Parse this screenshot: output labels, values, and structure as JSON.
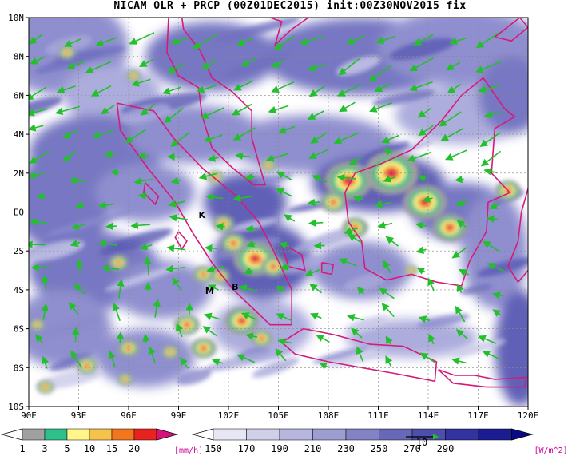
{
  "title": "NICAM OLR + PRCP (00Z01DEC2015) init:00Z30NOV2015 fix",
  "lat_labels": [
    "10N",
    "8N",
    "6N",
    "4N",
    "2N",
    "EQ",
    "2S",
    "4S",
    "6S",
    "8S",
    "10S"
  ],
  "lon_labels": [
    "90E",
    "93E",
    "96E",
    "99E",
    "102E",
    "105E",
    "108E",
    "111E",
    "114E",
    "117E",
    "120E"
  ],
  "markers": [
    {
      "label": "K",
      "lon": 100.2,
      "lat": -0.3
    },
    {
      "label": "M",
      "lon": 100.6,
      "lat": -4.2
    },
    {
      "label": "B",
      "lon": 102.2,
      "lat": -4.0
    }
  ],
  "prcp_colorbar": {
    "labels": [
      "1",
      "3",
      "5",
      "10",
      "15",
      "20"
    ],
    "colors": [
      "#ffffff",
      "#a0a0a0",
      "#2dc08a",
      "#fff58a",
      "#f7c24b",
      "#f2761e",
      "#e8231f",
      "#d6127a"
    ],
    "unit": "[mm/h]"
  },
  "olr_colorbar": {
    "labels": [
      "150",
      "170",
      "190",
      "210",
      "230",
      "250",
      "270",
      "290"
    ],
    "colors": [
      "#ffffff",
      "#e6e6f4",
      "#cfcfea",
      "#b6b6de",
      "#9d9dd2",
      "#8282c4",
      "#6868b8",
      "#4e4eab",
      "#3333a0",
      "#1c1c92",
      "#0a0a85"
    ],
    "unit": "[W/m^2]",
    "ref_vector_label": "10"
  },
  "coast_color": "#d61a7a",
  "vector_color": "#22c02a"
}
